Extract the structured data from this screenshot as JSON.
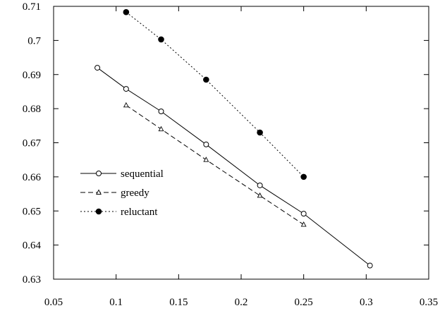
{
  "chart_data": {
    "type": "line",
    "title": "",
    "xlabel": "",
    "ylabel": "",
    "xlim": [
      0.05,
      0.35
    ],
    "ylim": [
      0.63,
      0.71
    ],
    "xticks": [
      0.05,
      0.1,
      0.15,
      0.2,
      0.25,
      0.3,
      0.35
    ],
    "yticks": [
      0.63,
      0.64,
      0.65,
      0.66,
      0.67,
      0.68,
      0.69,
      0.7,
      0.71
    ],
    "xtick_labels": [
      "0.05",
      "0.1",
      "0.15",
      "0.2",
      "0.25",
      "0.3",
      "0.35"
    ],
    "ytick_labels": [
      "0.63",
      "0.64",
      "0.65",
      "0.66",
      "0.67",
      "0.68",
      "0.69",
      "0.7",
      "0.71"
    ],
    "grid": false,
    "legend_position": "left-center",
    "series": [
      {
        "name": "sequential",
        "line": "solid",
        "marker": "open-circle",
        "color": "#000000",
        "x": [
          0.085,
          0.108,
          0.136,
          0.172,
          0.215,
          0.25,
          0.303
        ],
        "y": [
          0.692,
          0.6858,
          0.6792,
          0.6695,
          0.6575,
          0.6492,
          0.634
        ]
      },
      {
        "name": "greedy",
        "line": "dashed",
        "marker": "open-triangle",
        "color": "#000000",
        "x": [
          0.108,
          0.136,
          0.172,
          0.215,
          0.25
        ],
        "y": [
          0.681,
          0.674,
          0.665,
          0.6545,
          0.646
        ]
      },
      {
        "name": "reluctant",
        "line": "dotted",
        "marker": "filled-circle",
        "color": "#000000",
        "x": [
          0.108,
          0.136,
          0.172,
          0.215,
          0.25
        ],
        "y": [
          0.7083,
          0.7003,
          0.6885,
          0.673,
          0.66
        ]
      }
    ]
  }
}
